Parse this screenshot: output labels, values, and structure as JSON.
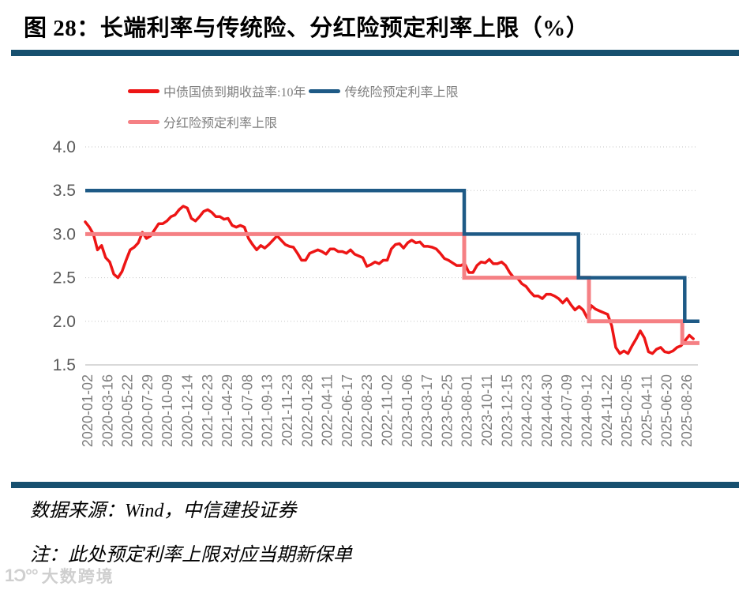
{
  "title": "图 28：长端利率与传统险、分红险预定利率上限（%）",
  "accent_color": "#17506f",
  "footer": {
    "source": "数据来源：Wind，中信建投证券",
    "note": "注：此处预定利率上限对应当期新保单"
  },
  "watermark": {
    "logo": "1Ɔ°°",
    "text": "大数跨境"
  },
  "chart_data": {
    "type": "line",
    "title": "长端利率与传统险、分红险预定利率上限（%）",
    "xlabel": "",
    "ylabel": "",
    "ylim": [
      1.5,
      4.0
    ],
    "yticks": [
      "4.0",
      "3.5",
      "3.0",
      "2.5",
      "2.0",
      "1.5"
    ],
    "grid": "horizontal-dotted",
    "legend_position": "top",
    "text_color_axis": "#595959",
    "text_color_xticks": "#7f7f7f",
    "gridline_color": "#c6c6c6",
    "x_ticklabels": [
      "2020-01-02",
      "2020-03-16",
      "2020-05-22",
      "2020-07-29",
      "2020-10-09",
      "2020-12-14",
      "2021-02-23",
      "2021-04-29",
      "2021-07-08",
      "2021-09-13",
      "2021-11-23",
      "2022-01-28",
      "2022-04-11",
      "2022-06-17",
      "2022-08-23",
      "2022-11-02",
      "2023-01-06",
      "2023-03-17",
      "2023-05-25",
      "2023-08-01",
      "2023-10-11",
      "2023-12-15",
      "2024-02-23",
      "2024-04-30",
      "2024-07-09",
      "2024-09-12",
      "2024-11-22",
      "2025-02-05",
      "2025-04-11",
      "2025-06-20",
      "2025-08-26"
    ],
    "series": [
      {
        "name": "中债国债到期收益率:10年",
        "type": "line",
        "color": "#ed1515",
        "sampling": "biweekly from 2020-01-02",
        "x_end_frac": 0.99,
        "values": [
          3.14,
          3.08,
          3.0,
          2.82,
          2.87,
          2.73,
          2.68,
          2.54,
          2.5,
          2.57,
          2.7,
          2.82,
          2.85,
          2.9,
          3.02,
          2.95,
          2.98,
          3.05,
          3.12,
          3.12,
          3.15,
          3.2,
          3.22,
          3.28,
          3.32,
          3.3,
          3.18,
          3.15,
          3.2,
          3.26,
          3.28,
          3.25,
          3.2,
          3.2,
          3.17,
          3.18,
          3.1,
          3.08,
          3.1,
          3.08,
          2.95,
          2.88,
          2.82,
          2.87,
          2.84,
          2.88,
          2.93,
          2.98,
          2.93,
          2.88,
          2.86,
          2.85,
          2.78,
          2.7,
          2.7,
          2.78,
          2.8,
          2.82,
          2.8,
          2.77,
          2.83,
          2.83,
          2.8,
          2.8,
          2.78,
          2.82,
          2.77,
          2.75,
          2.73,
          2.63,
          2.65,
          2.68,
          2.66,
          2.7,
          2.7,
          2.83,
          2.88,
          2.89,
          2.84,
          2.9,
          2.93,
          2.9,
          2.91,
          2.86,
          2.86,
          2.85,
          2.83,
          2.78,
          2.72,
          2.7,
          2.67,
          2.64,
          2.64,
          2.66,
          2.56,
          2.56,
          2.64,
          2.68,
          2.67,
          2.71,
          2.66,
          2.66,
          2.68,
          2.64,
          2.56,
          2.5,
          2.49,
          2.43,
          2.4,
          2.34,
          2.29,
          2.29,
          2.26,
          2.31,
          2.31,
          2.29,
          2.26,
          2.21,
          2.26,
          2.19,
          2.13,
          2.17,
          2.13,
          2.04,
          2.18,
          2.14,
          2.12,
          2.1,
          2.08,
          1.95,
          1.7,
          1.63,
          1.66,
          1.63,
          1.72,
          1.8,
          1.89,
          1.81,
          1.65,
          1.63,
          1.68,
          1.7,
          1.65,
          1.64,
          1.66,
          1.7,
          1.72,
          1.78,
          1.84,
          1.8
        ]
      },
      {
        "name": "传统险预定利率上限",
        "type": "step",
        "color": "#1e5a86",
        "steps": [
          {
            "value": 3.5,
            "until_frac": 0.617,
            "until_date": "2023-08"
          },
          {
            "value": 3.0,
            "until_frac": 0.803,
            "until_date": "2024-09"
          },
          {
            "value": 2.5,
            "until_frac": 0.976,
            "until_date": "2025-09"
          },
          {
            "value": 2.0,
            "until_frac": 1.0,
            "until_date": "end"
          }
        ]
      },
      {
        "name": "分红险预定利率上限",
        "type": "step",
        "color": "#f58084",
        "steps": [
          {
            "value": 3.0,
            "until_frac": 0.617,
            "until_date": "2023-08"
          },
          {
            "value": 2.5,
            "until_frac": 0.82,
            "until_date": "2024-10"
          },
          {
            "value": 2.0,
            "until_frac": 0.972,
            "until_date": "2025-09"
          },
          {
            "value": 1.75,
            "until_frac": 1.0,
            "until_date": "end"
          }
        ]
      }
    ]
  }
}
